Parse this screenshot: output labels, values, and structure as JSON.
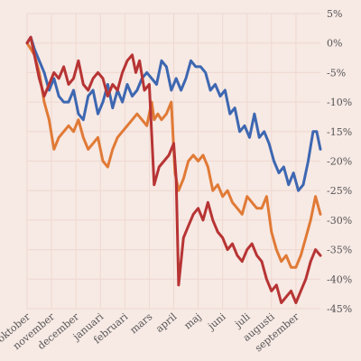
{
  "chart_data": {
    "type": "line",
    "title": "",
    "xlabel": "",
    "ylabel": "",
    "grid": true,
    "y_axis_side": "right",
    "ylim": [
      -45,
      5
    ],
    "y_ticks": [
      5,
      0,
      -5,
      -10,
      -15,
      -20,
      -25,
      -30,
      -35,
      -40,
      -45
    ],
    "y_tick_labels": [
      "5%",
      "0%",
      "-5%",
      "-10%",
      "-15%",
      "-20%",
      "-25%",
      "-30%",
      "-35%",
      "-40%",
      "-45%"
    ],
    "x_range": [
      0,
      12
    ],
    "month_labels": [
      "oktober",
      "november",
      "december",
      "januari",
      "februari",
      "mars",
      "april",
      "maj",
      "juni",
      "juli",
      "augusti",
      "september"
    ],
    "series": [
      {
        "color": "#3d67b1",
        "x": [
          0,
          0.15,
          0.3,
          0.5,
          0.7,
          0.9,
          1.1,
          1.3,
          1.5,
          1.7,
          1.9,
          2.1,
          2.3,
          2.5,
          2.7,
          2.9,
          3.1,
          3.3,
          3.5,
          3.7,
          3.9,
          4.1,
          4.3,
          4.5,
          4.7,
          4.9,
          5.1,
          5.3,
          5.5,
          5.7,
          5.9,
          6.1,
          6.3,
          6.5,
          6.7,
          6.9,
          7.1,
          7.3,
          7.5,
          7.7,
          7.9,
          8.1,
          8.3,
          8.5,
          8.7,
          8.9,
          9.1,
          9.3,
          9.5,
          9.7,
          9.9,
          10.1,
          10.3,
          10.5,
          10.7,
          10.9,
          11.1,
          11.3,
          11.5,
          11.7,
          11.85,
          12
        ],
        "values": [
          0,
          1,
          -1,
          -3,
          -5,
          -8,
          -6,
          -9,
          -10,
          -10,
          -8,
          -12,
          -13,
          -9,
          -8,
          -12,
          -10,
          -7,
          -11,
          -8,
          -10,
          -7,
          -9,
          -8,
          -6,
          -5,
          -6,
          -7,
          -3,
          -4,
          -8,
          -6,
          -8,
          -6,
          -3,
          -4,
          -4,
          -5,
          -8,
          -7,
          -9,
          -8,
          -12,
          -11,
          -15,
          -14,
          -16,
          -12,
          -16,
          -15,
          -17,
          -20,
          -22,
          -21,
          -24,
          -22,
          -25,
          -24,
          -20,
          -15,
          -15,
          -18
        ]
      },
      {
        "color": "#e07a36",
        "x": [
          0,
          0.15,
          0.3,
          0.5,
          0.7,
          0.9,
          1.1,
          1.3,
          1.5,
          1.7,
          1.9,
          2.1,
          2.3,
          2.5,
          2.7,
          2.9,
          3.1,
          3.3,
          3.5,
          3.7,
          3.9,
          4.1,
          4.3,
          4.5,
          4.7,
          4.9,
          5.1,
          5.2,
          5.35,
          5.5,
          5.7,
          5.9,
          6.05,
          6.2,
          6.4,
          6.6,
          6.8,
          7.0,
          7.2,
          7.4,
          7.6,
          7.8,
          8.0,
          8.2,
          8.4,
          8.6,
          8.8,
          9.0,
          9.2,
          9.4,
          9.6,
          9.8,
          10.0,
          10.2,
          10.4,
          10.6,
          10.8,
          11.0,
          11.2,
          11.4,
          11.6,
          11.8,
          12
        ],
        "values": [
          0,
          -1,
          -2,
          -5,
          -10,
          -13,
          -18,
          -16,
          -15,
          -14,
          -15,
          -13,
          -16,
          -18,
          -17,
          -16,
          -20,
          -21,
          -18,
          -16,
          -15,
          -14,
          -13,
          -12,
          -13,
          -14,
          -10,
          -13,
          -12,
          -13,
          -12,
          -10,
          -22,
          -25,
          -23,
          -20,
          -19,
          -20,
          -19,
          -21,
          -25,
          -24,
          -26,
          -25,
          -27,
          -28,
          -29,
          -26,
          -27,
          -28,
          -28,
          -26,
          -32,
          -35,
          -37,
          -36,
          -38,
          -38,
          -36,
          -33,
          -30,
          -26,
          -29
        ]
      },
      {
        "color": "#b73434",
        "x": [
          0,
          0.15,
          0.3,
          0.5,
          0.7,
          0.9,
          1.1,
          1.3,
          1.5,
          1.7,
          1.9,
          2.1,
          2.3,
          2.5,
          2.7,
          2.9,
          3.1,
          3.3,
          3.5,
          3.7,
          3.9,
          4.1,
          4.3,
          4.45,
          4.6,
          4.8,
          5.0,
          5.2,
          5.4,
          5.6,
          5.8,
          6.0,
          6.1,
          6.2,
          6.4,
          6.6,
          6.8,
          7.0,
          7.2,
          7.4,
          7.6,
          7.8,
          8.0,
          8.2,
          8.4,
          8.6,
          8.8,
          9.0,
          9.2,
          9.4,
          9.6,
          9.8,
          10.0,
          10.2,
          10.4,
          10.6,
          10.8,
          11.0,
          11.2,
          11.4,
          11.6,
          11.8,
          12
        ],
        "values": [
          0,
          1,
          -2,
          -6,
          -9,
          -7,
          -5,
          -6,
          -4,
          -7,
          -6,
          -3,
          -7,
          -8,
          -6,
          -5,
          -6,
          -9,
          -7,
          -8,
          -5,
          -3,
          -2,
          -5,
          -3,
          -8,
          -7,
          -24,
          -21,
          -20,
          -19,
          -17,
          -23,
          -41,
          -33,
          -31,
          -29,
          -28,
          -30,
          -27,
          -30,
          -32,
          -33,
          -35,
          -34,
          -36,
          -37,
          -35,
          -34,
          -36,
          -37,
          -40,
          -42,
          -41,
          -44,
          -43,
          -42,
          -44,
          -42,
          -40,
          -37,
          -35,
          -36
        ]
      }
    ]
  }
}
